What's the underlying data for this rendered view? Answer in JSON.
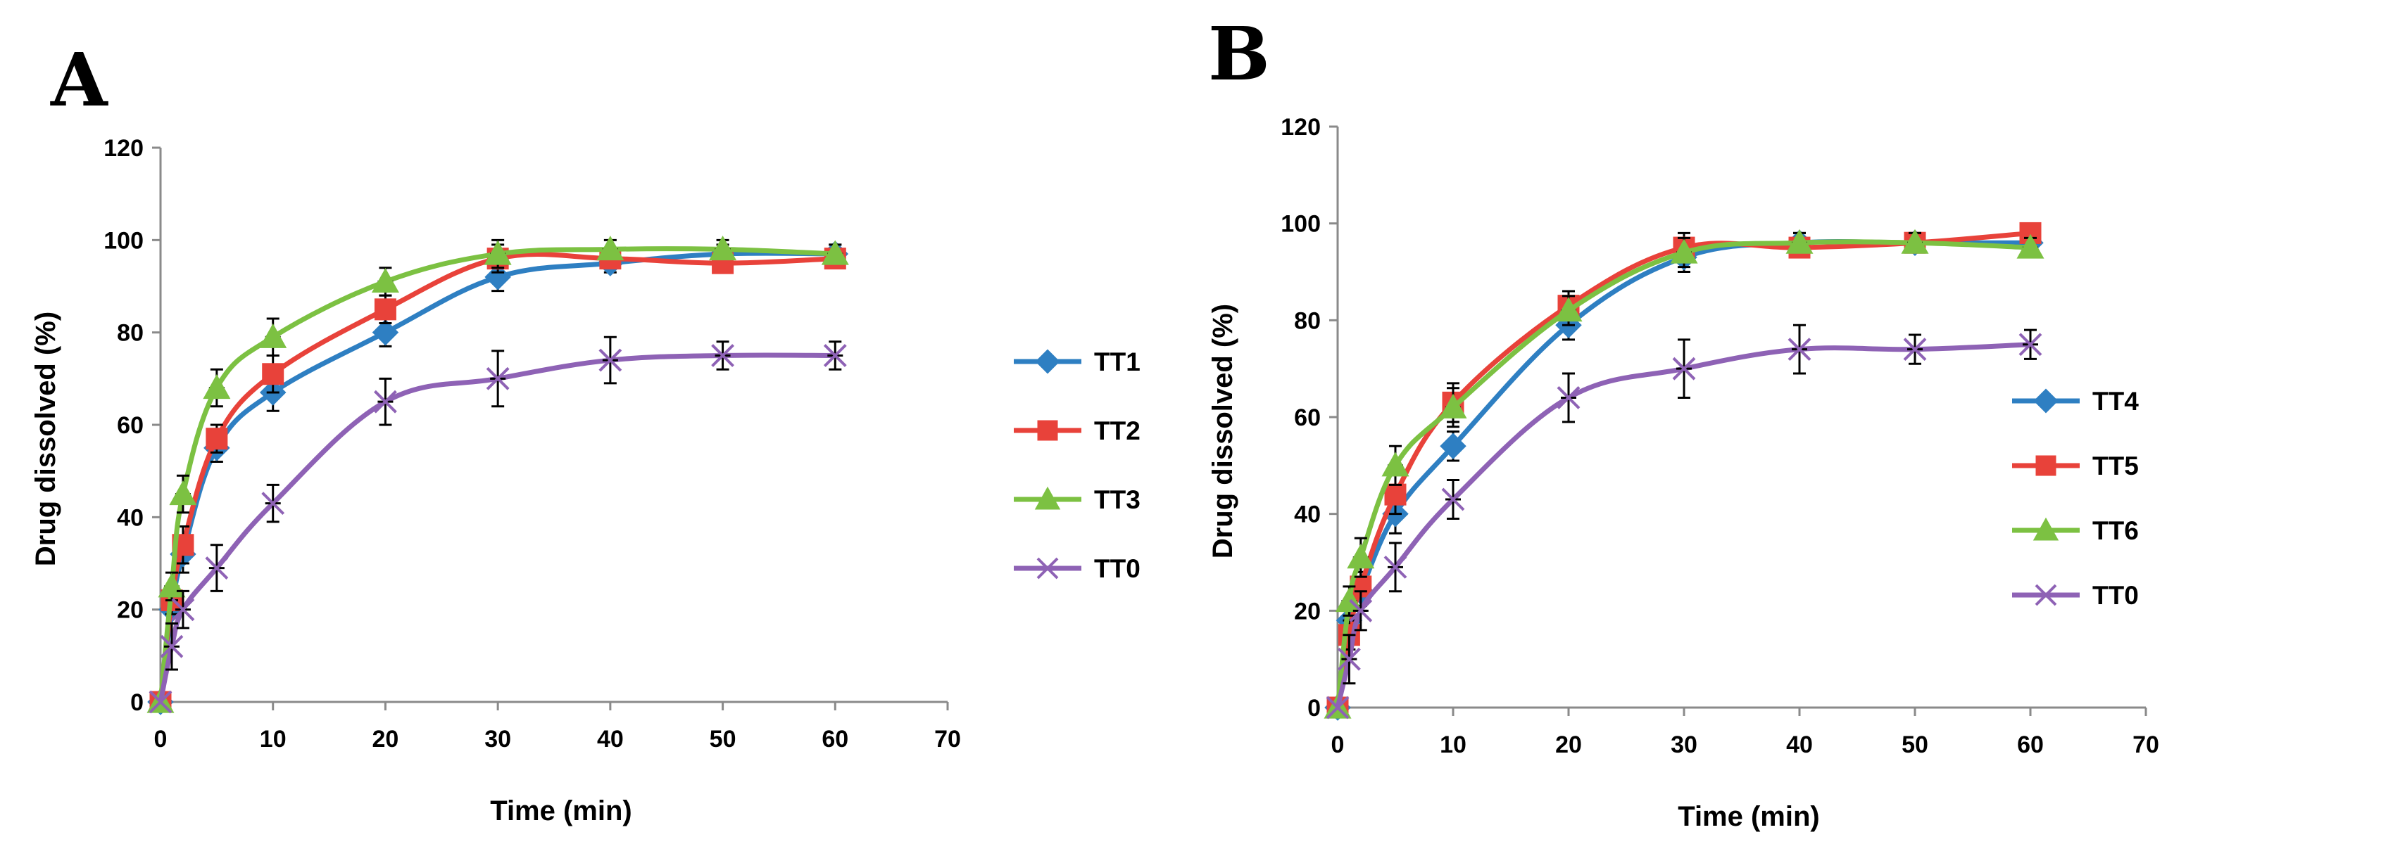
{
  "chart_data": [
    {
      "type": "line",
      "panel_label": "A",
      "xlabel": "Time (min)",
      "ylabel": "Drug dissolved (%)",
      "xlim": [
        0,
        70
      ],
      "ylim": [
        0,
        120
      ],
      "x_ticks": [
        0,
        10,
        20,
        30,
        40,
        50,
        60,
        70
      ],
      "y_ticks": [
        0,
        20,
        40,
        60,
        80,
        100,
        120
      ],
      "grid": false,
      "legend": "right",
      "x": [
        0,
        1,
        2,
        5,
        10,
        20,
        30,
        40,
        50,
        60
      ],
      "series": [
        {
          "name": "TT1",
          "color": "#2e7fc2",
          "marker": "diamond",
          "values": [
            0,
            20,
            32,
            55,
            67,
            80,
            92,
            95,
            97,
            97
          ],
          "errors": [
            0,
            3,
            4,
            3,
            4,
            3,
            3,
            2,
            2,
            2
          ]
        },
        {
          "name": "TT2",
          "color": "#e8423a",
          "marker": "square",
          "values": [
            0,
            22,
            34,
            57,
            71,
            85,
            96,
            96,
            95,
            96
          ],
          "errors": [
            0,
            3,
            4,
            3,
            4,
            3,
            3,
            2,
            2,
            2
          ]
        },
        {
          "name": "TT3",
          "color": "#7cc142",
          "marker": "triangle",
          "values": [
            0,
            25,
            45,
            68,
            79,
            91,
            97,
            98,
            98,
            97
          ],
          "errors": [
            0,
            3,
            4,
            4,
            4,
            3,
            3,
            2,
            2,
            2
          ]
        },
        {
          "name": "TT0",
          "color": "#8e62b5",
          "marker": "x",
          "values": [
            0,
            12,
            20,
            29,
            43,
            65,
            70,
            74,
            75,
            75
          ],
          "errors": [
            0,
            5,
            4,
            5,
            4,
            5,
            6,
            5,
            3,
            3
          ]
        }
      ]
    },
    {
      "type": "line",
      "panel_label": "B",
      "xlabel": "Time (min)",
      "ylabel": "Drug dissolved (%)",
      "xlim": [
        0,
        70
      ],
      "ylim": [
        0,
        120
      ],
      "x_ticks": [
        0,
        10,
        20,
        30,
        40,
        50,
        60,
        70
      ],
      "y_ticks": [
        0,
        20,
        40,
        60,
        80,
        100,
        120
      ],
      "grid": false,
      "legend": "right",
      "x": [
        0,
        1,
        2,
        5,
        10,
        20,
        30,
        40,
        50,
        60
      ],
      "series": [
        {
          "name": "TT4",
          "color": "#2e7fc2",
          "marker": "diamond",
          "values": [
            0,
            18,
            24,
            40,
            54,
            79,
            93,
            96,
            96,
            96
          ],
          "errors": [
            0,
            3,
            4,
            4,
            3,
            3,
            3,
            2,
            2,
            2
          ]
        },
        {
          "name": "TT5",
          "color": "#e8423a",
          "marker": "square",
          "values": [
            0,
            15,
            25,
            44,
            63,
            83,
            95,
            95,
            96,
            98
          ],
          "errors": [
            0,
            3,
            4,
            4,
            4,
            3,
            3,
            2,
            2,
            2
          ]
        },
        {
          "name": "TT6",
          "color": "#7cc142",
          "marker": "triangle",
          "values": [
            0,
            22,
            31,
            50,
            62,
            82,
            94,
            96,
            96,
            95
          ],
          "errors": [
            0,
            3,
            4,
            4,
            4,
            3,
            3,
            2,
            2,
            2
          ]
        },
        {
          "name": "TT0",
          "color": "#8e62b5",
          "marker": "x",
          "values": [
            0,
            10,
            20,
            29,
            43,
            64,
            70,
            74,
            74,
            75
          ],
          "errors": [
            0,
            5,
            4,
            5,
            4,
            5,
            6,
            5,
            3,
            3
          ]
        }
      ]
    }
  ]
}
